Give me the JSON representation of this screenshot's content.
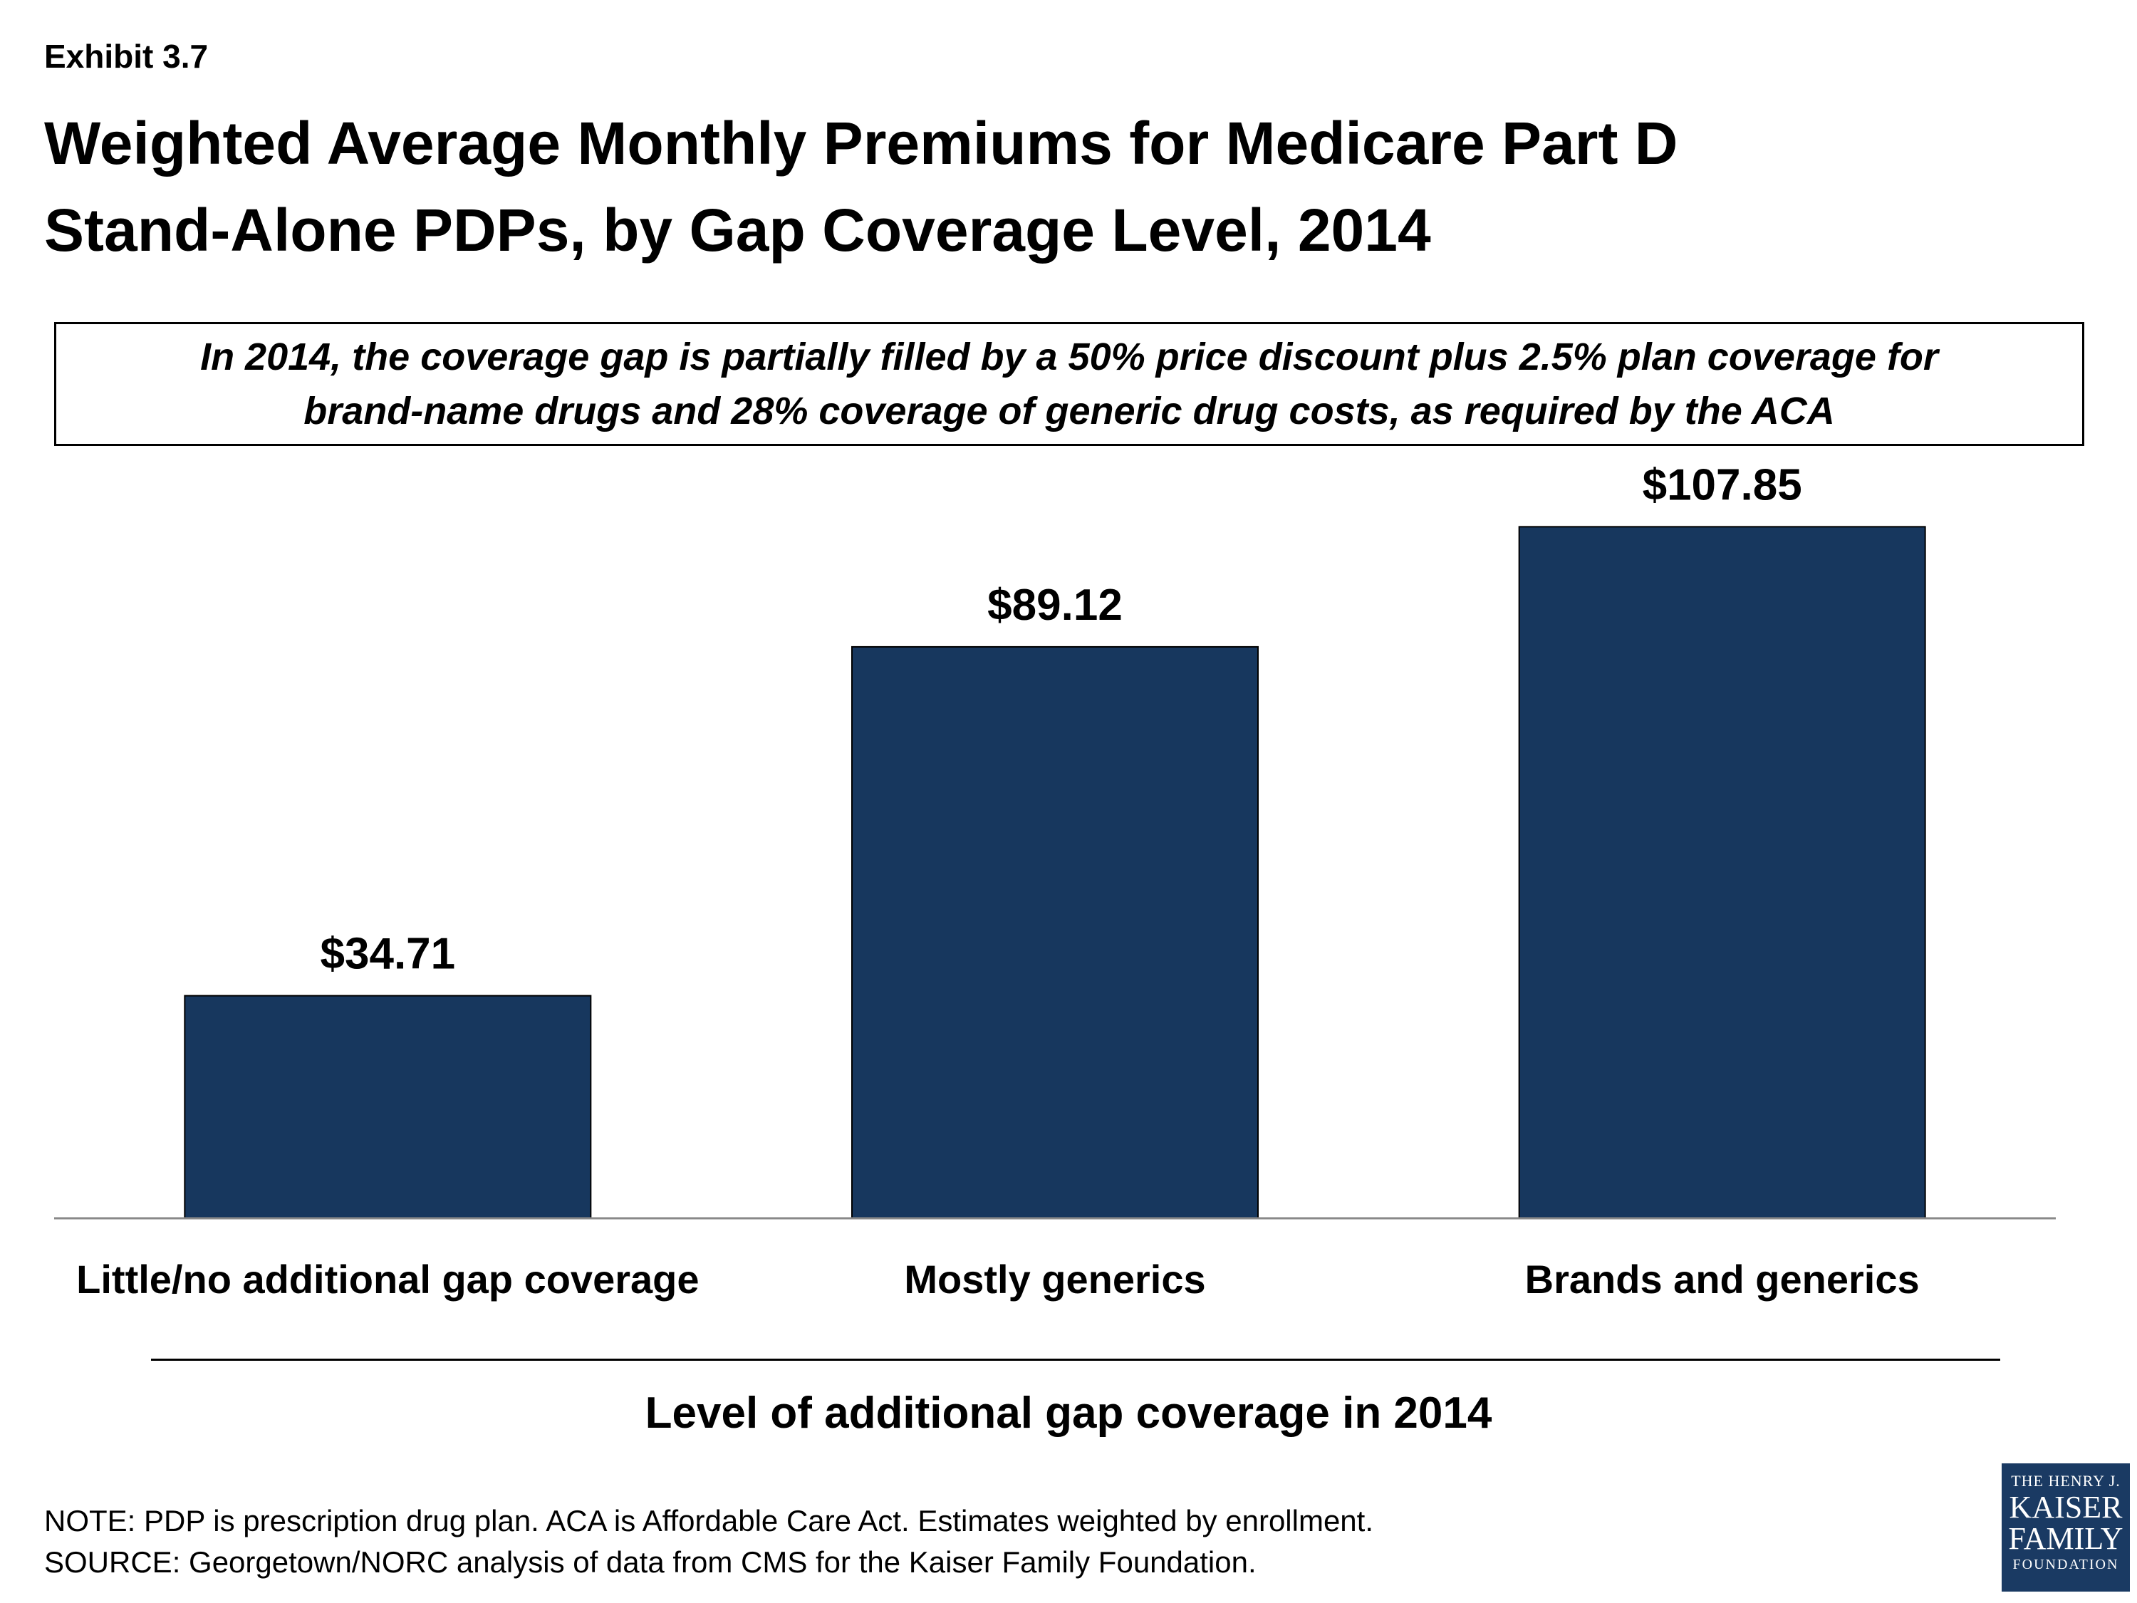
{
  "exhibit_label": "Exhibit 3.7",
  "title_lines": [
    "Weighted Average Monthly Premiums for Medicare Part D",
    "Stand-Alone PDPs, by Gap Coverage Level, 2014"
  ],
  "callout_lines": [
    "In 2014, the coverage gap is partially filled by a 50% price discount plus 2.5% plan coverage for",
    "brand-name drugs and 28% coverage of generic drug costs, as required by the ACA"
  ],
  "chart_data": {
    "type": "bar",
    "categories": [
      "Little/no additional gap coverage",
      "Mostly generics",
      "Brands and generics"
    ],
    "values": [
      34.71,
      89.12,
      107.85
    ],
    "value_labels": [
      "$34.71",
      "$89.12",
      "$107.85"
    ],
    "title": "Weighted Average Monthly Premiums for Medicare Part D Stand-Alone PDPs, by Gap Coverage Level, 2014",
    "xlabel": "Level of additional gap coverage in 2014",
    "ylabel": "",
    "ylim": [
      0,
      120
    ],
    "bar_color": "#17375e",
    "grid": false,
    "legend": "none"
  },
  "notes": [
    "NOTE: PDP is prescription drug plan. ACA is Affordable Care Act. Estimates weighted by enrollment.",
    "SOURCE: Georgetown/NORC analysis of data from CMS for the Kaiser Family Foundation."
  ],
  "logo": {
    "line1": "THE HENRY J.",
    "line2": "KAISER",
    "line3": "FAMILY",
    "line4": "FOUNDATION",
    "color": "#1a3a63"
  }
}
